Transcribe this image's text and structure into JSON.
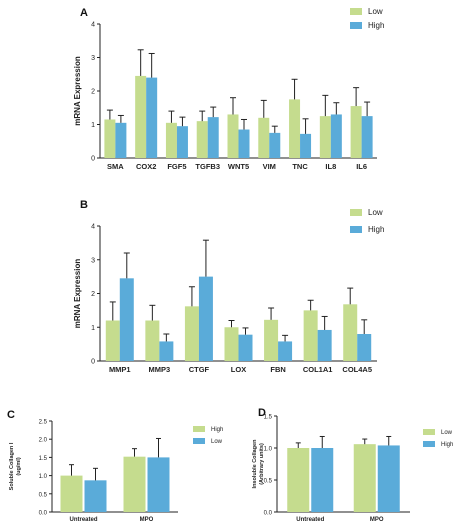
{
  "colors": {
    "low": "#c5dc8e",
    "high": "#5aabd9",
    "axis": "#222222"
  },
  "chart_data": [
    {
      "panel": "A",
      "type": "bar",
      "ylabel": "mRNA Expression",
      "ylim": [
        0,
        4
      ],
      "yticks": [
        0,
        1,
        2,
        3,
        4
      ],
      "categories": [
        "SMA",
        "COX2",
        "FGF5",
        "TGFB3",
        "WNT5",
        "VIM",
        "TNC",
        "IL8",
        "IL6"
      ],
      "series": [
        {
          "name": "Low",
          "color": "low",
          "values": [
            1.15,
            2.45,
            1.05,
            1.1,
            1.3,
            1.2,
            1.75,
            1.25,
            1.55
          ],
          "errors": [
            0.28,
            0.78,
            0.35,
            0.3,
            0.5,
            0.52,
            0.6,
            0.62,
            0.55
          ]
        },
        {
          "name": "High",
          "color": "high",
          "values": [
            1.05,
            2.4,
            0.95,
            1.22,
            0.85,
            0.75,
            0.72,
            1.3,
            1.25
          ],
          "errors": [
            0.22,
            0.72,
            0.27,
            0.3,
            0.3,
            0.2,
            0.45,
            0.35,
            0.42
          ]
        }
      ],
      "legend": {
        "position": "top-right",
        "entries": [
          "Low",
          "High"
        ]
      }
    },
    {
      "panel": "B",
      "type": "bar",
      "ylabel": "mRNA Expression",
      "ylim": [
        0,
        4
      ],
      "yticks": [
        0,
        1,
        2,
        3,
        4
      ],
      "categories": [
        "MMP1",
        "MMP3",
        "CTGF",
        "LOX",
        "FBN",
        "COL1A1",
        "COL4A5"
      ],
      "series": [
        {
          "name": "Low",
          "color": "low",
          "values": [
            1.2,
            1.2,
            1.62,
            1.0,
            1.22,
            1.5,
            1.68
          ],
          "errors": [
            0.55,
            0.45,
            0.58,
            0.2,
            0.35,
            0.3,
            0.48
          ]
        },
        {
          "name": "High",
          "color": "high",
          "values": [
            2.45,
            0.58,
            2.5,
            0.78,
            0.58,
            0.92,
            0.8
          ],
          "errors": [
            0.75,
            0.22,
            1.08,
            0.2,
            0.18,
            0.4,
            0.42
          ]
        }
      ],
      "legend": {
        "position": "top-right",
        "entries": [
          "Low",
          "High"
        ]
      }
    },
    {
      "panel": "C",
      "type": "bar",
      "ylabel": "Soluble Collagen I",
      "ylabel2": "(ug/ml)",
      "ylim": [
        0,
        2.5
      ],
      "yticks": [
        0.0,
        0.5,
        1.0,
        1.5,
        2.0,
        2.5
      ],
      "categories": [
        "Untreated",
        "MPO"
      ],
      "series": [
        {
          "name": "High",
          "color": "low",
          "values": [
            1.0,
            1.52
          ],
          "errors": [
            0.3,
            0.22
          ]
        },
        {
          "name": "Low",
          "color": "high",
          "values": [
            0.87,
            1.5
          ],
          "errors": [
            0.33,
            0.52
          ]
        }
      ],
      "legend": {
        "position": "top-right",
        "entries": [
          "High",
          "Low"
        ]
      }
    },
    {
      "panel": "D",
      "type": "bar",
      "ylabel": "Insoluble Collagen",
      "ylabel2": "(Arbitrary units)",
      "ylim": [
        0,
        1.5
      ],
      "yticks": [
        0.0,
        0.5,
        1.0,
        1.5
      ],
      "categories": [
        "Untreated",
        "MPO"
      ],
      "series": [
        {
          "name": "Low",
          "color": "low",
          "values": [
            1.0,
            1.06
          ],
          "errors": [
            0.08,
            0.08
          ]
        },
        {
          "name": "High",
          "color": "high",
          "values": [
            1.0,
            1.04
          ],
          "errors": [
            0.18,
            0.14
          ]
        }
      ],
      "legend": {
        "position": "top-right",
        "entries": [
          "Low",
          "High"
        ]
      }
    }
  ]
}
